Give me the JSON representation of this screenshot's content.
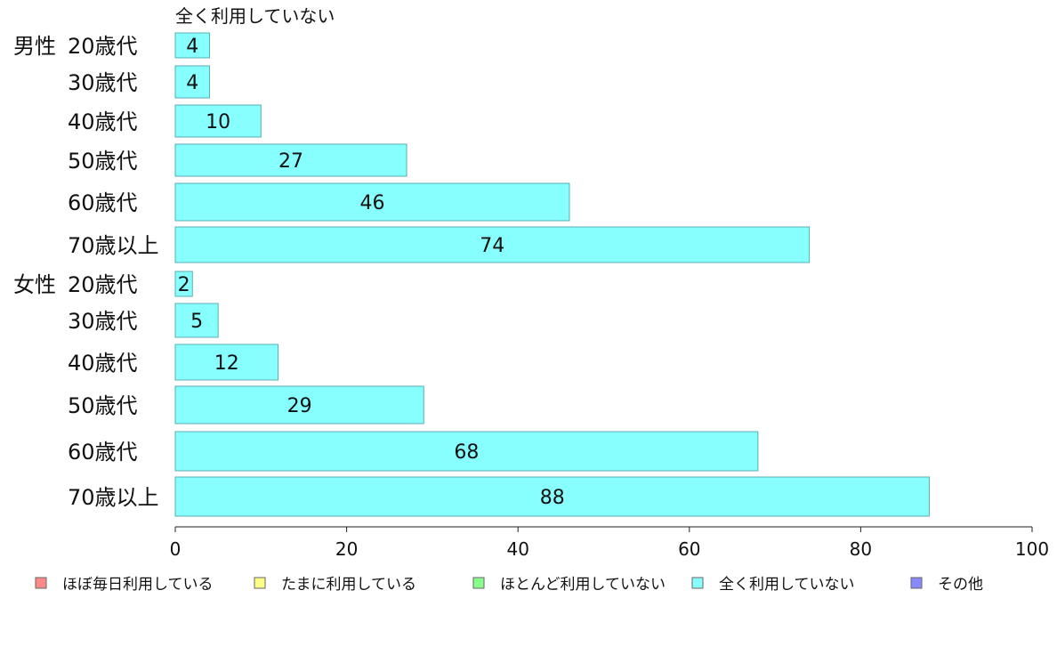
{
  "chart_data": {
    "type": "bar",
    "orientation": "horizontal",
    "series_label": "全く利用していない",
    "groups": [
      "男性",
      "女性"
    ],
    "categories": [
      "20歳代",
      "30歳代",
      "40歳代",
      "50歳代",
      "60歳代",
      "70歳以上",
      "20歳代",
      "30歳代",
      "40歳代",
      "50歳代",
      "60歳代",
      "70歳以上"
    ],
    "values": [
      4,
      4,
      10,
      27,
      46,
      74,
      2,
      5,
      12,
      29,
      68,
      88
    ],
    "xlim": [
      0,
      100
    ],
    "x_ticks": [
      "0",
      "20",
      "40",
      "60",
      "80",
      "100"
    ],
    "legend_position": "bottom",
    "legend": [
      {
        "label": "ほぼ毎日利用している",
        "color": "#ff8888"
      },
      {
        "label": "たまに利用している",
        "color": "#ffff88"
      },
      {
        "label": "ほとんど利用していない",
        "color": "#88ff88"
      },
      {
        "label": "全く利用していない",
        "color": "#88ffff"
      },
      {
        "label": "その他",
        "color": "#8888ff"
      }
    ],
    "bar_color": "#88ffff",
    "bar_stroke": "#5aaeb0"
  }
}
